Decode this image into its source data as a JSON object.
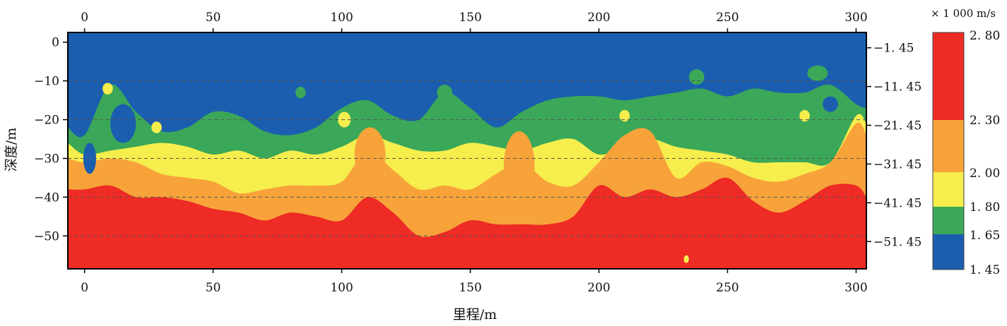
{
  "chart_data": {
    "type": "heatmap",
    "title": "",
    "xlabel": "里程/m",
    "ylabel": "深度/m",
    "xlim": [
      -6.5,
      304
    ],
    "ylim": [
      -58.5,
      2.5
    ],
    "x_ticks": [
      0,
      50,
      100,
      150,
      200,
      250,
      300
    ],
    "x_tick_labels": [
      "0",
      "50",
      "100",
      "150",
      "200",
      "250",
      "300"
    ],
    "y_ticks": [
      0,
      -10,
      -20,
      -30,
      -40,
      -50
    ],
    "y_tick_labels": [
      "0",
      "−10",
      "−20",
      "−30",
      "−40",
      "−50"
    ],
    "right_y_ticks": [
      -1.45,
      -11.45,
      -21.45,
      -31.45,
      -41.45,
      -51.45
    ],
    "right_y_tick_labels": [
      "−1. 45",
      "−11. 45",
      "−21. 45",
      "−31. 45",
      "−41. 45",
      "−51. 45"
    ],
    "dashed_gridlines_y": [
      -10,
      -20,
      -30,
      -40,
      -50
    ],
    "colorbar": {
      "unit": "× 1 000 m/s",
      "placement": "right",
      "labels": [
        "2. 80",
        "2. 30",
        "2. 00",
        "1. 80",
        "1. 65",
        "1. 45"
      ],
      "label_values": [
        2.8,
        2.3,
        2.0,
        1.8,
        1.65,
        1.45
      ],
      "bands": [
        {
          "range": [
            2.3,
            2.8
          ],
          "color": "#ee2b24"
        },
        {
          "range": [
            2.0,
            2.3
          ],
          "color": "#f7a33a"
        },
        {
          "range": [
            1.8,
            2.0
          ],
          "color": "#f6ee4c"
        },
        {
          "range": [
            1.65,
            1.8
          ],
          "color": "#3aa858"
        },
        {
          "range": [
            1.45,
            1.65
          ],
          "color": "#1b5eb0"
        }
      ]
    },
    "band_top_depths_x": [
      -6.5,
      0,
      10,
      20,
      30,
      40,
      50,
      60,
      70,
      80,
      90,
      100,
      110,
      120,
      130,
      140,
      150,
      160,
      170,
      180,
      190,
      200,
      210,
      220,
      230,
      240,
      250,
      260,
      270,
      280,
      290,
      300,
      304
    ],
    "band_top_depths": [
      {
        "band": "1.65–1.80",
        "depths": [
          -22,
          -24,
          -11,
          -18,
          -23,
          -22,
          -18,
          -19,
          -23,
          -24,
          -22,
          -17,
          -15,
          -19,
          -20,
          -13,
          -17,
          -22,
          -18,
          -15,
          -14,
          -14,
          -15,
          -14,
          -13,
          -12,
          -14,
          -12,
          -13,
          -13,
          -11,
          -16,
          -17
        ]
      },
      {
        "band": "1.80–2.00",
        "depths": [
          -26,
          -29,
          -28,
          -27,
          -26,
          -27,
          -29,
          -28,
          -30,
          -28,
          -29,
          -27,
          -24,
          -26,
          -28,
          -28,
          -26,
          -27,
          -28,
          -26,
          -25,
          -29,
          -27,
          -25,
          -27,
          -28,
          -29,
          -31,
          -31,
          -31,
          -31,
          -19,
          -21
        ]
      },
      {
        "band": "2.00–2.30",
        "depths": [
          -30,
          -31,
          -30,
          -31,
          -34,
          -35,
          -36,
          -39,
          -38,
          -37,
          -37,
          -36,
          -28,
          -33,
          -38,
          -37,
          -38,
          -34,
          -31,
          -36,
          -37,
          -31,
          -24,
          -23,
          -35,
          -31,
          -32,
          -35,
          -36,
          -34,
          -31,
          -21,
          -24
        ]
      },
      {
        "band": "2.30–2.80",
        "depths": [
          -38,
          -38,
          -37,
          -40,
          -40,
          -41,
          -43,
          -44,
          -46,
          -44,
          -45,
          -46,
          -40,
          -44,
          -50,
          -49,
          -46,
          -47,
          -47,
          -47,
          -45,
          -37,
          -40,
          -38,
          -40,
          -38,
          -35,
          -41,
          -44,
          -41,
          -37,
          -37,
          -40
        ]
      }
    ]
  }
}
